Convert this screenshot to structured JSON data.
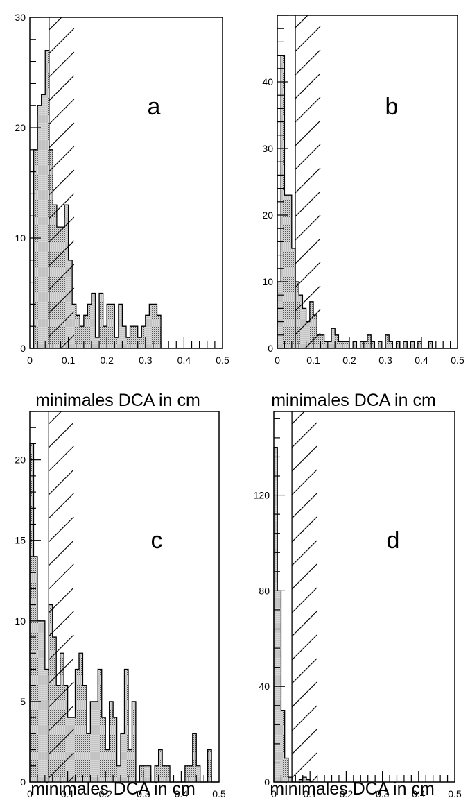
{
  "chart_data": [
    {
      "type": "bar",
      "panel_label": "a",
      "xlabel": "minimales DCA in cm",
      "ylabel": "",
      "xlim": [
        0,
        0.5
      ],
      "ylim": [
        0,
        30
      ],
      "x_ticks": [
        "0",
        "0.1",
        "0.2",
        "0.3",
        "0.4",
        "0.5"
      ],
      "y_ticks": [
        {
          "value": 0,
          "label": "0"
        },
        {
          "value": 10,
          "label": "10"
        },
        {
          "value": 20,
          "label": "20"
        },
        {
          "value": 30,
          "label": "30"
        }
      ],
      "cut_x": 0.05,
      "bin_width": 0.01,
      "values": [
        0,
        18,
        22,
        23,
        27,
        18,
        13,
        11,
        11,
        13,
        8,
        4,
        3,
        2,
        3,
        4,
        5,
        1,
        5,
        2,
        4,
        4,
        1,
        4,
        2,
        1,
        2,
        2,
        1,
        2,
        3,
        4,
        4,
        3
      ]
    },
    {
      "type": "bar",
      "panel_label": "b",
      "xlabel": "minimales DCA in cm",
      "ylabel": "",
      "xlim": [
        0,
        0.5
      ],
      "ylim": [
        0,
        50
      ],
      "x_ticks": [
        "0",
        "0.1",
        "0.2",
        "0.3",
        "0.4",
        "0.5"
      ],
      "y_ticks": [
        {
          "value": 0,
          "label": "0"
        },
        {
          "value": 10,
          "label": "10"
        },
        {
          "value": 20,
          "label": "20"
        },
        {
          "value": 30,
          "label": "30"
        },
        {
          "value": 40,
          "label": "40"
        }
      ],
      "cut_x": 0.05,
      "bin_width": 0.01,
      "values": [
        10,
        44,
        23,
        23,
        15,
        10,
        8,
        6,
        4,
        7,
        5,
        2,
        2,
        1,
        1,
        3,
        2,
        1,
        1,
        1,
        0,
        1,
        0,
        1,
        1,
        2,
        1,
        0,
        1,
        0,
        2,
        1,
        0,
        1,
        0,
        1,
        0,
        1,
        0,
        1,
        0,
        0,
        1,
        0,
        0,
        0
      ]
    },
    {
      "type": "bar",
      "panel_label": "c",
      "xlabel": "minimales DCA in cm",
      "ylabel": "",
      "xlim": [
        0,
        0.5
      ],
      "ylim": [
        0,
        23
      ],
      "x_ticks": [
        "0",
        "0.1",
        "0.2",
        "0.3",
        "0.4",
        "0.5"
      ],
      "y_ticks": [
        {
          "value": 0,
          "label": "0"
        },
        {
          "value": 5,
          "label": "5"
        },
        {
          "value": 10,
          "label": "10"
        },
        {
          "value": 15,
          "label": "15"
        },
        {
          "value": 20,
          "label": "20"
        }
      ],
      "cut_x": 0.05,
      "bin_width": 0.01,
      "values": [
        21,
        14,
        10,
        10,
        7,
        11,
        9,
        6,
        8,
        6,
        4,
        4,
        7,
        8,
        6,
        3,
        5,
        5,
        7,
        4,
        2,
        5,
        4,
        1,
        3,
        7,
        2,
        5,
        0,
        1,
        1,
        1,
        0,
        1,
        2,
        1,
        1,
        0,
        0,
        0,
        0,
        1,
        1,
        3,
        1,
        0,
        0,
        2,
        0,
        0
      ]
    },
    {
      "type": "bar",
      "panel_label": "d",
      "xlabel": "minimales DCA in cm",
      "ylabel": "",
      "xlim": [
        0,
        0.5
      ],
      "ylim": [
        0,
        155
      ],
      "x_ticks": [
        "0",
        "0.1",
        "0.2",
        "0.3",
        "0.4",
        "0.5"
      ],
      "y_ticks": [
        {
          "value": 0,
          "label": "0"
        },
        {
          "value": 40,
          "label": "40"
        },
        {
          "value": 80,
          "label": "80"
        },
        {
          "value": 120,
          "label": "120"
        }
      ],
      "cut_x": 0.05,
      "bin_width": 0.01,
      "values": [
        140,
        80,
        30,
        10,
        2,
        0,
        0,
        1,
        2,
        1
      ]
    }
  ]
}
